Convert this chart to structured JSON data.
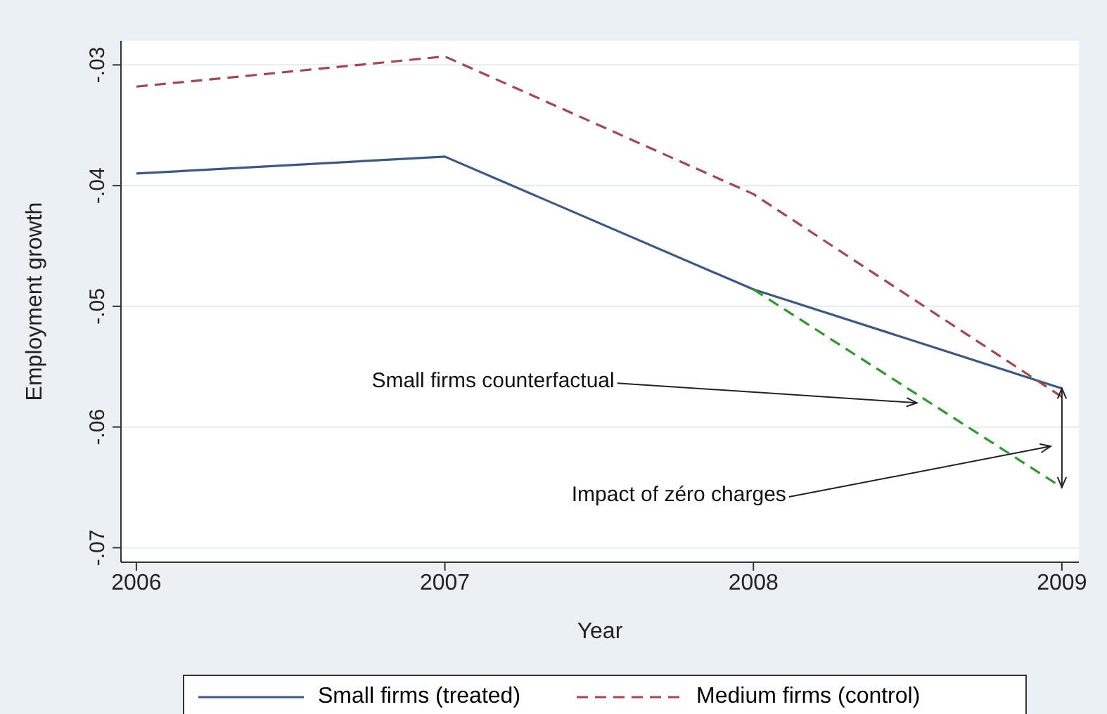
{
  "chart_data": {
    "type": "line",
    "xlabel": "Year",
    "ylabel": "Employment growth",
    "xlim": [
      2005.95,
      2009.055
    ],
    "xticks": [
      2006,
      2007,
      2008,
      2009
    ],
    "ylim": [
      -0.0712,
      -0.028
    ],
    "yticks": [
      {
        "value": -0.07,
        "label": "-.07"
      },
      {
        "value": -0.06,
        "label": "-.06"
      },
      {
        "value": -0.05,
        "label": "-.05"
      },
      {
        "value": -0.04,
        "label": "-.04"
      },
      {
        "value": -0.03,
        "label": "-.03"
      }
    ],
    "grid": "y",
    "legend": "bottom",
    "series": [
      {
        "name": "Small firms (treated)",
        "color": "#3a5a85",
        "line_style": "solid",
        "x": [
          2006,
          2007,
          2008,
          2009
        ],
        "values": [
          -0.039,
          -0.0376,
          -0.0486,
          -0.0568
        ]
      },
      {
        "name": "Medium firms (control)",
        "color": "#a5474f",
        "line_style": "dashed",
        "x": [
          2006,
          2007,
          2008,
          2009
        ],
        "values": [
          -0.0318,
          -0.0293,
          -0.0407,
          -0.0575
        ]
      },
      {
        "color": "#2e9a2e",
        "line_style": "dashed",
        "x": [
          2008,
          2009
        ],
        "values": [
          -0.0486,
          -0.065
        ]
      }
    ],
    "annotations": [
      {
        "text": "Small firms counterfactual",
        "x": 2008.53,
        "y": -0.058
      },
      "Impact of zéro charges"
    ]
  }
}
